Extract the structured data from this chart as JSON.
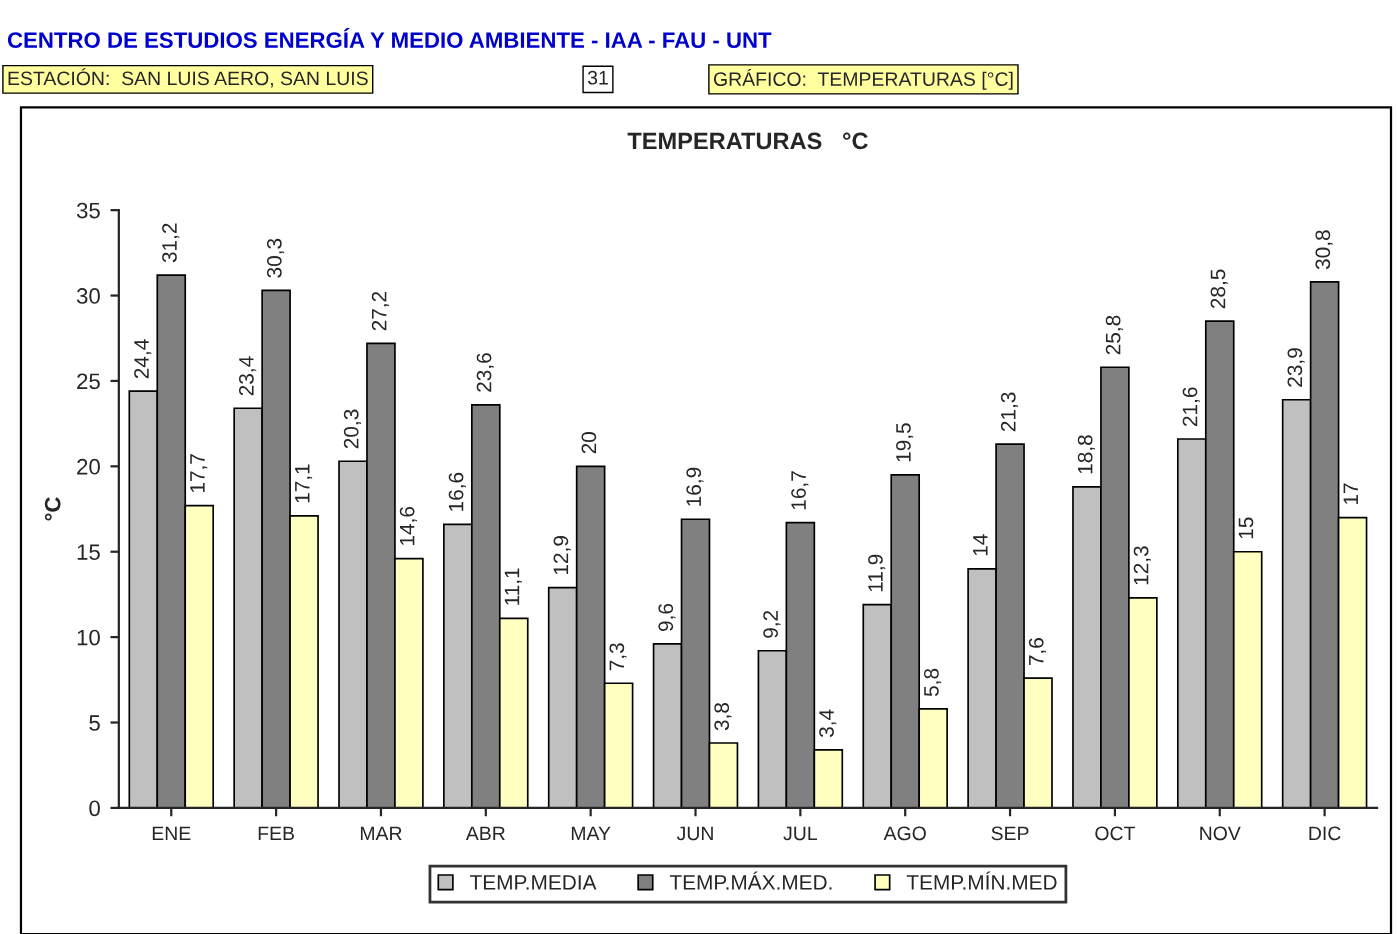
{
  "chart_data": {
    "type": "bar",
    "title": "TEMPERATURAS   °C",
    "ylabel": "°C",
    "annotations": [
      "CENTRO DE ESTUDIOS ENERGÍA Y MEDIO AMBIENTE - IAA - FAU - UNT",
      "ESTACIÓN:  SAN LUIS AERO, SAN LUIS",
      "31",
      "GRÁFICO:  TEMPERATURAS [°C]"
    ],
    "categories": [
      "ENE",
      "FEB",
      "MAR",
      "ABR",
      "MAY",
      "JUN",
      "JUL",
      "AGO",
      "SEP",
      "OCT",
      "NOV",
      "DIC"
    ],
    "series": [
      {
        "name": "TEMP.MEDIA",
        "color": "#c0c0c0",
        "values": [
          24.4,
          23.4,
          20.3,
          16.6,
          12.9,
          9.6,
          9.2,
          11.9,
          14,
          18.8,
          21.6,
          23.9
        ],
        "value_labels": [
          "24,4",
          "23,4",
          "20,3",
          "16,6",
          "12,9",
          "9,6",
          "9,2",
          "11,9",
          "14",
          "18,8",
          "21,6",
          "23,9"
        ]
      },
      {
        "name": "TEMP.MÁX.MED.",
        "color": "#808080",
        "values": [
          31.2,
          30.3,
          27.2,
          23.6,
          20,
          16.9,
          16.7,
          19.5,
          21.3,
          25.8,
          28.5,
          30.8
        ],
        "value_labels": [
          "31,2",
          "30,3",
          "27,2",
          "23,6",
          "20",
          "16,9",
          "16,7",
          "19,5",
          "21,3",
          "25,8",
          "28,5",
          "30,8"
        ]
      },
      {
        "name": "TEMP.MÍN.MED",
        "color": "#ffffc0",
        "values": [
          17.7,
          17.1,
          14.6,
          11.1,
          7.3,
          3.8,
          3.4,
          5.8,
          7.6,
          12.3,
          15,
          17
        ],
        "value_labels": [
          "17,7",
          "17,1",
          "14,6",
          "11,1",
          "7,3",
          "3,8",
          "3,4",
          "5,8",
          "7,6",
          "12,3",
          "15",
          "17"
        ]
      }
    ],
    "ylim": [
      0,
      35
    ],
    "yticks": [
      0,
      5,
      10,
      15,
      20,
      25,
      30,
      35
    ],
    "legend": "bottom",
    "grid": false
  }
}
